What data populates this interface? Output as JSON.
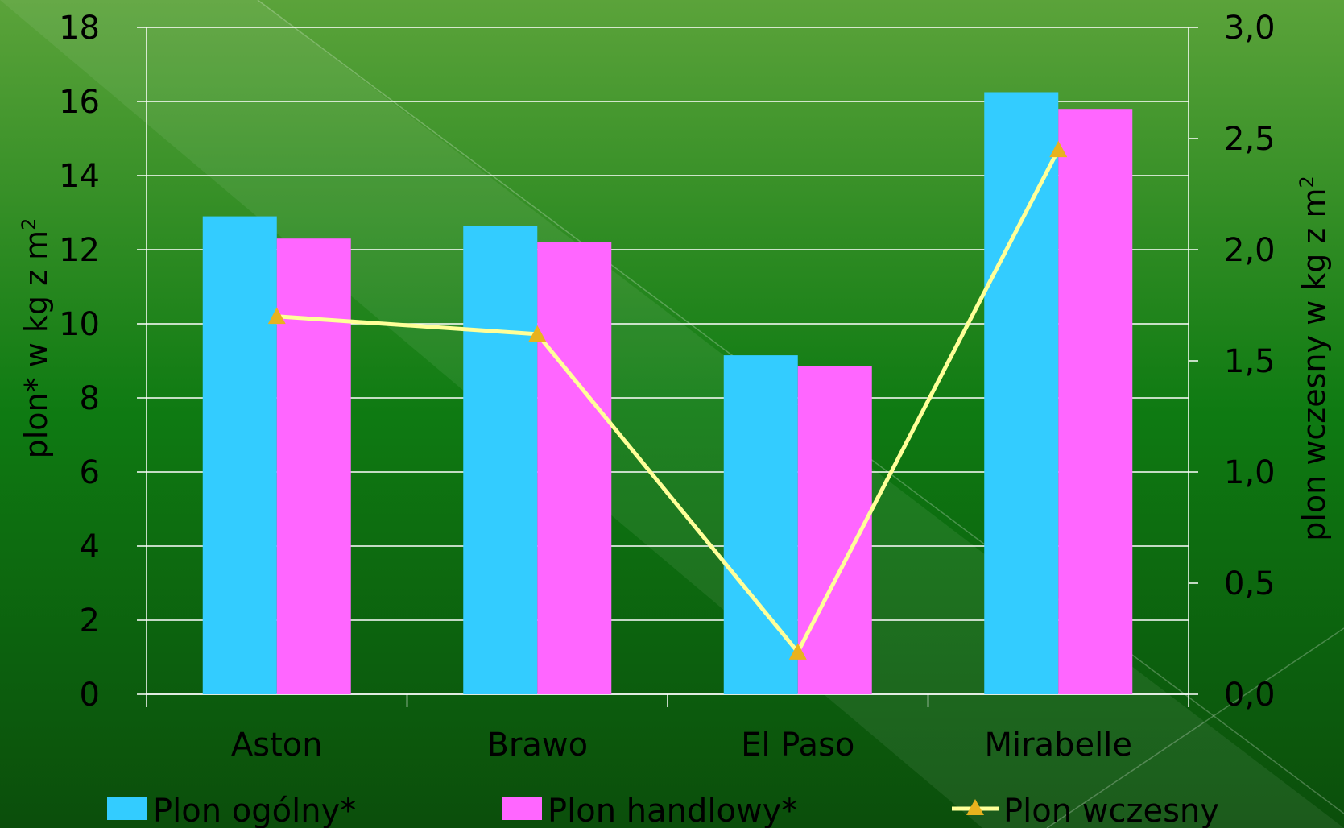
{
  "chart_data": {
    "type": "bar",
    "title": "",
    "categories": [
      "Aston",
      "Brawo",
      "El Paso",
      "Mirabelle"
    ],
    "series": [
      {
        "name": "Plon ogólny*",
        "type": "bar",
        "axis": "left",
        "color": "#33CCFF",
        "values": [
          12.9,
          12.65,
          9.15,
          16.25
        ]
      },
      {
        "name": "Plon handlowy*",
        "type": "bar",
        "axis": "left",
        "color": "#FF66FF",
        "values": [
          12.3,
          12.2,
          8.85,
          15.8
        ]
      },
      {
        "name": "Plon wczesny",
        "type": "line",
        "axis": "right",
        "color": "#FFFF99",
        "marker_color": "#E8B21E",
        "values": [
          1.7,
          1.62,
          0.19,
          2.45
        ]
      }
    ],
    "ylabel_left": "plon*  w kg z m",
    "ylabel_left_sup": "2",
    "ylabel_right": "plon wczesny w kg z m",
    "ylabel_right_sup": "2",
    "ylim_left": [
      0,
      18
    ],
    "ylim_right": [
      0,
      3
    ],
    "yticks_left": [
      "0",
      "2",
      "4",
      "6",
      "8",
      "10",
      "12",
      "14",
      "16",
      "18"
    ],
    "yticks_right": [
      "0,0",
      "0,5",
      "1,0",
      "1,5",
      "2,0",
      "2,5",
      "3,0"
    ],
    "grid": true,
    "legend_position": "bottom",
    "colors": {
      "background_top": "#5BA33A",
      "background_mid": "#0E7A12",
      "background_bottom": "#0B4E0B",
      "grid": "#FFFFFF"
    }
  }
}
